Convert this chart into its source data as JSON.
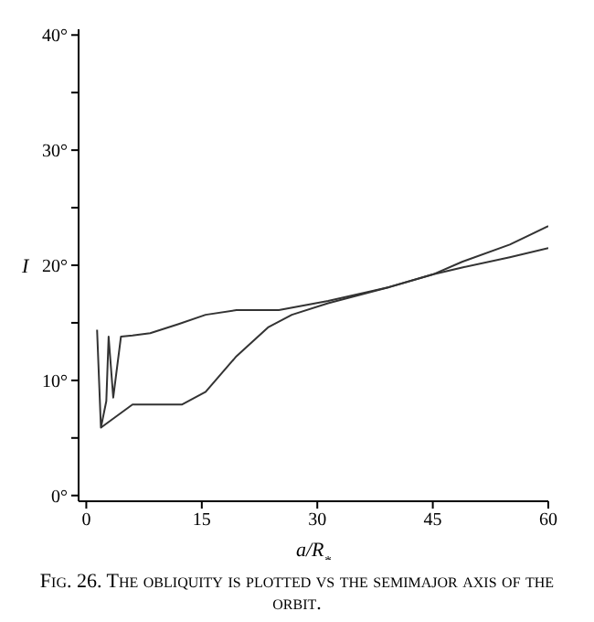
{
  "chart_data": {
    "type": "line",
    "xlabel": "a/R$_{*}$",
    "ylabel": "I",
    "annotations": [
      "Fig. 26. The obliquity is plotted vs the semimajor axis of the orbit."
    ],
    "series": [
      {
        "color": "#333333",
        "x": [
          1.4,
          1.9,
          2.6,
          2.9,
          3.5,
          4.5,
          6,
          8.3,
          12,
          15.5,
          19.5,
          25,
          31.4,
          39.3,
          45,
          48.8,
          55,
          60
        ],
        "values": [
          14.4,
          5.9,
          8.2,
          13.8,
          8.5,
          13.8,
          13.9,
          14.1,
          14.9,
          15.7,
          16.1,
          16.1,
          16.9,
          18.1,
          19.2,
          20.3,
          21.8,
          23.4
        ]
      },
      {
        "color": "#333333",
        "x": [
          1.9,
          6,
          12.4,
          15.5,
          19.5,
          23.6,
          26.7,
          31.4,
          39.3,
          45,
          48.8,
          55,
          60
        ],
        "values": [
          5.9,
          7.9,
          7.9,
          9,
          12.1,
          14.6,
          15.7,
          16.7,
          18.1,
          19.2,
          19.8,
          20.7,
          21.5
        ]
      }
    ],
    "xlim": [
      -1,
      60
    ],
    "ylim": [
      -0.5,
      40.5
    ],
    "xticks": [
      0,
      15,
      30,
      45,
      60
    ],
    "yticks": [
      {
        "value": 0,
        "label": "0°"
      },
      {
        "value": 5,
        "label": null
      },
      {
        "value": 10,
        "label": "10°"
      },
      {
        "value": 15,
        "label": null
      },
      {
        "value": 20,
        "label": "20°"
      },
      {
        "value": 25,
        "label": null
      },
      {
        "value": 30,
        "label": "30°"
      },
      {
        "value": 35,
        "label": null
      },
      {
        "value": 40,
        "label": "40°"
      }
    ],
    "marker": "none",
    "legend": false,
    "grid": false
  }
}
